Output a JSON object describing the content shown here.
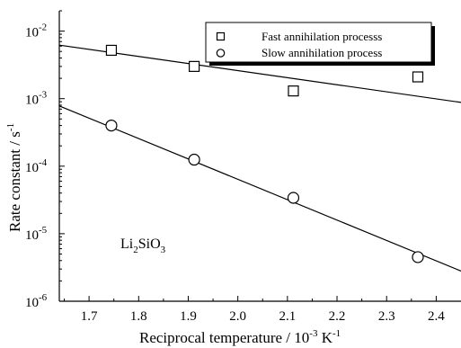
{
  "chart_data": {
    "type": "scatter",
    "title": "",
    "xlabel": {
      "main": "Reciprocal temperature / 10",
      "sup1": "-3",
      "mid": " K",
      "sup2": "-1"
    },
    "ylabel": {
      "main": "Rate constant / s",
      "sup": "-1"
    },
    "x_ticks": [
      "1.7",
      "1.8",
      "1.9",
      "2.0",
      "2.1",
      "2.2",
      "2.3",
      "2.4"
    ],
    "x_tick_values": [
      1.7,
      1.8,
      1.9,
      2.0,
      2.1,
      2.2,
      2.3,
      2.4
    ],
    "xlim": [
      1.64,
      2.45
    ],
    "y_scale": "log",
    "ylim": [
      1e-06,
      0.02
    ],
    "y_ticks": [
      {
        "base": "10",
        "exp": "-6",
        "value": 1e-06
      },
      {
        "base": "10",
        "exp": "-5",
        "value": 1e-05
      },
      {
        "base": "10",
        "exp": "-4",
        "value": 0.0001
      },
      {
        "base": "10",
        "exp": "-3",
        "value": 0.001
      },
      {
        "base": "10",
        "exp": "-2",
        "value": 0.01
      }
    ],
    "legend_position": "top-right",
    "series": [
      {
        "name": "Fast annihilation processs",
        "marker": "square",
        "x": [
          1.745,
          1.912,
          2.112,
          2.363
        ],
        "y": [
          0.0052,
          0.003,
          0.0013,
          0.0021
        ],
        "fit": {
          "x": [
            1.64,
            2.45
          ],
          "y": [
            0.0062,
            0.00088
          ]
        }
      },
      {
        "name": "Slow annihilation process",
        "marker": "circle",
        "x": [
          1.745,
          1.912,
          2.112,
          2.363
        ],
        "y": [
          0.0004,
          0.000125,
          3.4e-05,
          4.5e-06
        ],
        "fit": {
          "x": [
            1.64,
            2.45
          ],
          "y": [
            0.00078,
            2.8e-06
          ]
        }
      }
    ],
    "annotation": {
      "main": "Li",
      "sub1": "2",
      "mid": "SiO",
      "sub2": "3"
    }
  }
}
